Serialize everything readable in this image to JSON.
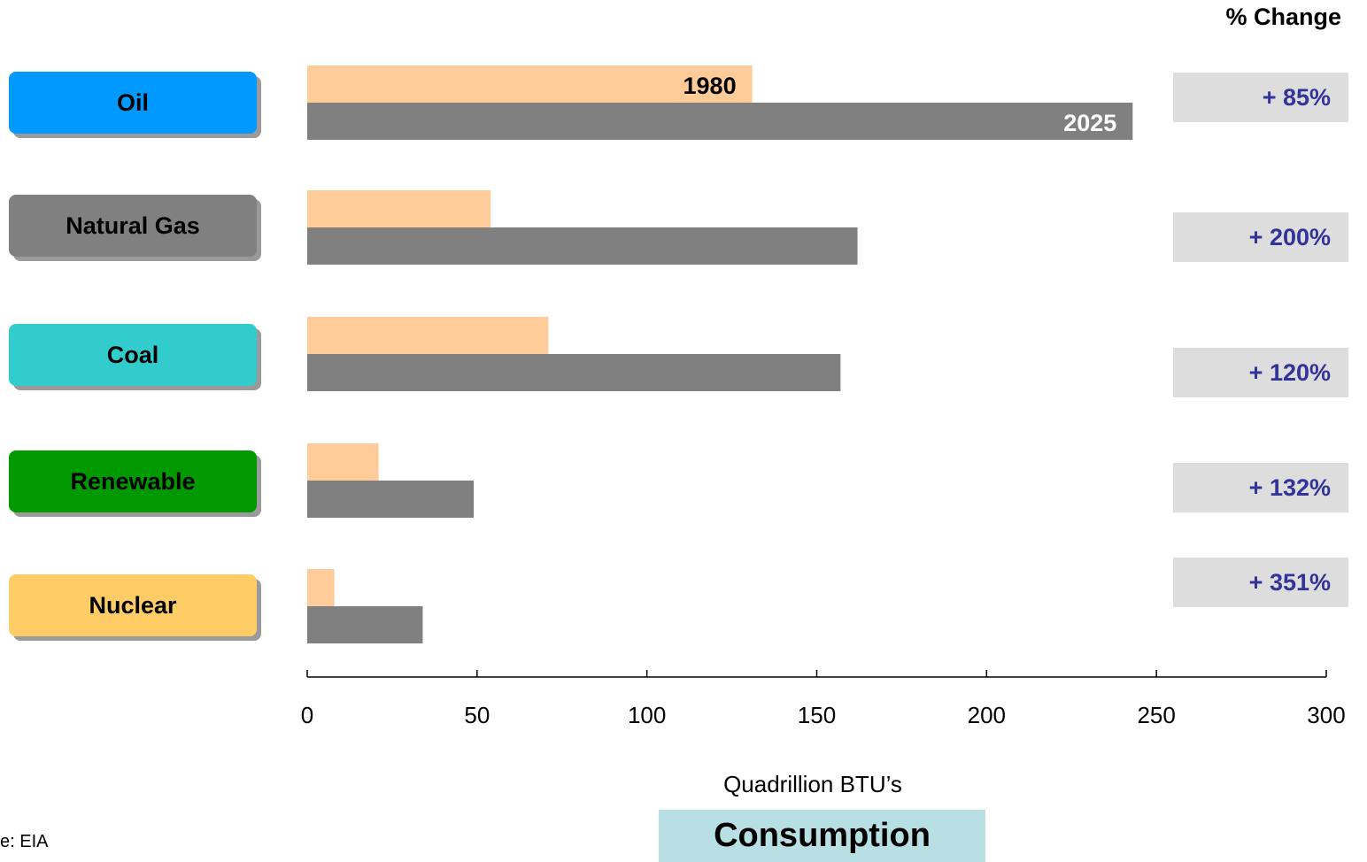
{
  "chart_data": {
    "type": "bar",
    "orientation": "horizontal",
    "categories": [
      "Oil",
      "Natural Gas",
      "Coal",
      "Renewable",
      "Nuclear"
    ],
    "series": [
      {
        "name": "1980",
        "color": "#ffcc99",
        "values": [
          131,
          54,
          71,
          21,
          8
        ]
      },
      {
        "name": "2025",
        "color": "#808080",
        "values": [
          243,
          162,
          157,
          49,
          34
        ]
      }
    ],
    "category_colors": [
      "#0099ff",
      "#808080",
      "#33cccc",
      "#009900",
      "#ffcc66"
    ],
    "percent_change_header": "% Change",
    "percent_change": [
      "+ 85%",
      "+ 200%",
      "+ 120%",
      "+ 132%",
      "+ 351%"
    ],
    "xlabel": "Quadrillion BTU’s",
    "xlim": [
      0,
      300
    ],
    "xticks": [
      0,
      50,
      100,
      150,
      200,
      250,
      300
    ],
    "section_label": "Consumption",
    "source": "e:  EIA",
    "grid": false
  }
}
